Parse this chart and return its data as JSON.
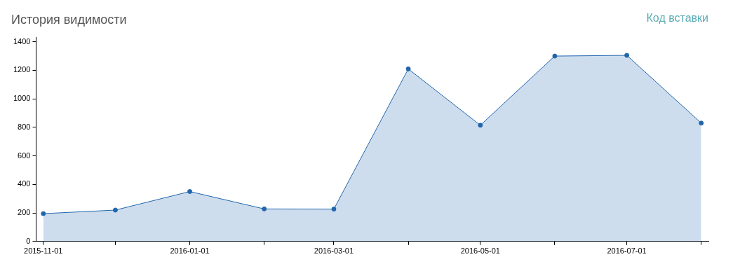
{
  "chart_data": {
    "type": "area",
    "title": "История видимости",
    "annotations": [
      "Код вставки"
    ],
    "x": [
      "2015-11-01",
      "2015-12-01",
      "2016-01-01",
      "2016-02-01",
      "2016-03-01",
      "2016-04-01",
      "2016-05-01",
      "2016-06-01",
      "2016-07-01",
      "2016-08-01"
    ],
    "series": [
      {
        "color": "#2166ac",
        "values": [
          195,
          220,
          350,
          228,
          227,
          1210,
          815,
          1300,
          1305,
          830
        ]
      }
    ],
    "xlim": [
      "2015-10-29",
      "2016-08-04"
    ],
    "xticks": [
      "2015-11-01",
      {
        "value": "2015-12-01",
        "label": null
      },
      "2016-01-01",
      {
        "value": "2016-02-01",
        "label": null
      },
      "2016-03-01",
      {
        "value": "2016-04-01",
        "label": null
      },
      "2016-05-01",
      {
        "value": "2016-06-01",
        "label": null
      },
      "2016-07-01",
      {
        "value": "2016-08-01",
        "label": null
      }
    ],
    "ylim": [
      0,
      1430
    ],
    "yticks": [
      0,
      200,
      400,
      600,
      800,
      1000,
      1200,
      1400
    ],
    "grid": false,
    "legend": false,
    "marker": "circle"
  }
}
